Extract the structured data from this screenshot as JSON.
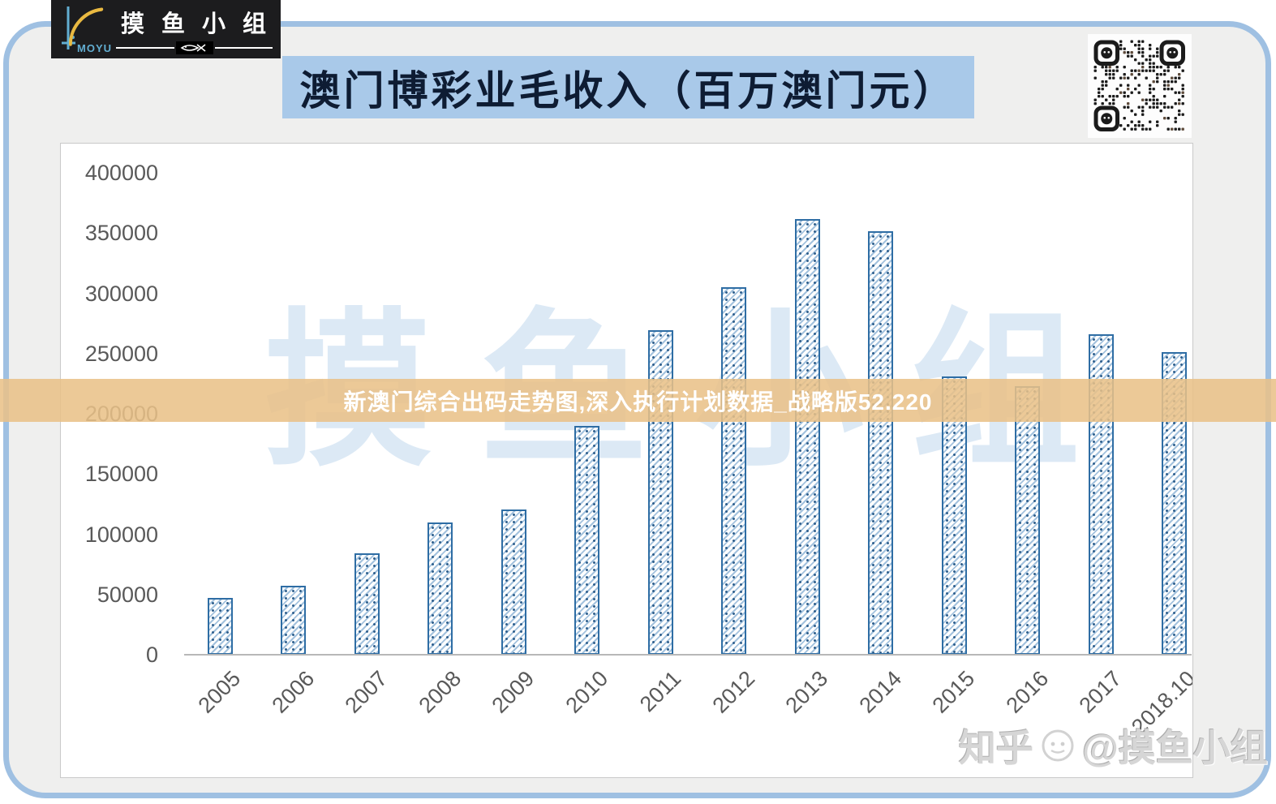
{
  "logo": {
    "latin": "MOYU",
    "name": "摸鱼小组"
  },
  "header": {
    "title": "澳门博彩业毛收入（百万澳门元）"
  },
  "overlay_banner": {
    "text": "新澳门综合出码走势图,深入执行计划数据_战略版52.220"
  },
  "watermarks": {
    "background": "摸鱼小组",
    "zhihu_left": "知乎",
    "zhihu_right": "@摸鱼小组"
  },
  "icons": {
    "logo_fish": "fish-logo-icon",
    "divider_fish": "fish-divider-icon",
    "qr": "qr-code",
    "zhihu_avatar": "avatar-circle-icon"
  },
  "colors": {
    "frame_border": "#9fc0e2",
    "page_bg": "#efefee",
    "logo_bg": "#1c1c1e",
    "logo_fish": "#e9b941",
    "logo_accent": "#62aed2",
    "title_bg": "#a9c9e9",
    "title_text": "#0e1c33",
    "banner_bg": "#e9c188",
    "banner_text": "#ffffff",
    "bar_border": "#2e6da4",
    "axis_text": "#595959",
    "watermark_blue": "#dce9f5"
  },
  "chart_data": {
    "type": "bar",
    "title": "澳门博彩业毛收入（百万澳门元）",
    "xlabel": "",
    "ylabel": "",
    "categories": [
      "2005",
      "2006",
      "2007",
      "2008",
      "2009",
      "2010",
      "2011",
      "2012",
      "2013",
      "2014",
      "2015",
      "2016",
      "2017",
      "2018.10"
    ],
    "values": [
      47134,
      57521,
      83847,
      109826,
      120383,
      189588,
      269058,
      305235,
      361866,
      351521,
      230840,
      223210,
      265743,
      251465
    ],
    "ylim": [
      0,
      400000
    ],
    "y_ticks": [
      0,
      50000,
      100000,
      150000,
      200000,
      250000,
      300000,
      350000,
      400000
    ],
    "grid": false,
    "legend": "none",
    "bar_fill": "diagonal-hatch",
    "x_label_rotation": -45
  }
}
